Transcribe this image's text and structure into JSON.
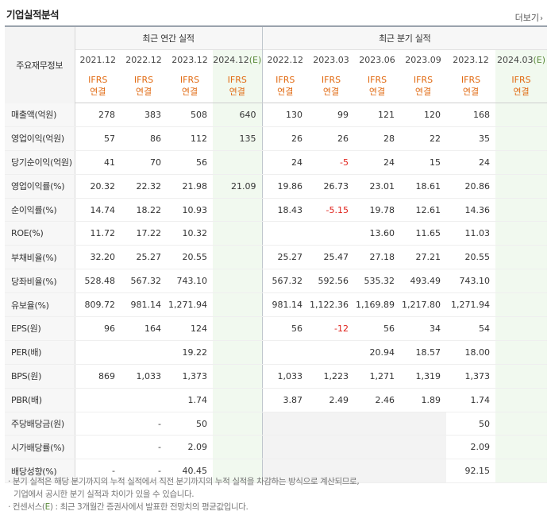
{
  "header": {
    "title": "기업실적분석",
    "more_label": "더보기"
  },
  "table": {
    "row_head_label": "주요재무정보",
    "group_annual": "최근 연간 실적",
    "group_quarter": "최근 분기 실적",
    "periods": [
      "2021.12",
      "2022.12",
      "2023.12",
      "2024.12",
      "2022.12",
      "2023.03",
      "2023.06",
      "2023.09",
      "2023.12",
      "2024.03"
    ],
    "estimate_suffix": "(E)",
    "ifrs_line1": "IFRS",
    "ifrs_line2": "연결",
    "rows": [
      {
        "label": "매출액(억원)",
        "cells": [
          "278",
          "383",
          "508",
          "640",
          "130",
          "99",
          "121",
          "120",
          "168",
          ""
        ]
      },
      {
        "label": "영업이익(억원)",
        "cells": [
          "57",
          "86",
          "112",
          "135",
          "26",
          "26",
          "28",
          "22",
          "35",
          ""
        ]
      },
      {
        "label": "당기순이익(억원)",
        "cells": [
          "41",
          "70",
          "56",
          "",
          "24",
          "-5",
          "24",
          "15",
          "24",
          ""
        ]
      },
      {
        "label": "영업이익률(%)",
        "cells": [
          "20.32",
          "22.32",
          "21.98",
          "21.09",
          "19.86",
          "26.73",
          "23.01",
          "18.61",
          "20.86",
          ""
        ]
      },
      {
        "label": "순이익률(%)",
        "cells": [
          "14.74",
          "18.22",
          "10.93",
          "",
          "18.43",
          "-5.15",
          "19.78",
          "12.61",
          "14.36",
          ""
        ]
      },
      {
        "label": "ROE(%)",
        "cells": [
          "11.72",
          "17.22",
          "10.32",
          "",
          "",
          "",
          "13.60",
          "11.65",
          "11.03",
          ""
        ]
      },
      {
        "label": "부채비율(%)",
        "cells": [
          "32.20",
          "25.27",
          "20.55",
          "",
          "25.27",
          "25.47",
          "27.18",
          "27.21",
          "20.55",
          ""
        ]
      },
      {
        "label": "당좌비율(%)",
        "cells": [
          "528.48",
          "567.32",
          "743.10",
          "",
          "567.32",
          "592.56",
          "535.32",
          "493.49",
          "743.10",
          ""
        ]
      },
      {
        "label": "유보율(%)",
        "cells": [
          "809.72",
          "981.14",
          "1,271.94",
          "",
          "981.14",
          "1,122.36",
          "1,169.89",
          "1,217.80",
          "1,271.94",
          ""
        ]
      },
      {
        "label": "EPS(원)",
        "cells": [
          "96",
          "164",
          "124",
          "",
          "56",
          "-12",
          "56",
          "34",
          "54",
          ""
        ]
      },
      {
        "label": "PER(배)",
        "cells": [
          "",
          "",
          "19.22",
          "",
          "",
          "",
          "20.94",
          "18.57",
          "18.00",
          ""
        ]
      },
      {
        "label": "BPS(원)",
        "cells": [
          "869",
          "1,033",
          "1,373",
          "",
          "1,033",
          "1,223",
          "1,271",
          "1,319",
          "1,373",
          ""
        ]
      },
      {
        "label": "PBR(배)",
        "cells": [
          "",
          "",
          "1.74",
          "",
          "3.87",
          "2.49",
          "2.46",
          "1.89",
          "1.74",
          ""
        ]
      },
      {
        "label": "주당배당금(원)",
        "cells": [
          "",
          "-",
          "50",
          "",
          "",
          "",
          "",
          "",
          "50",
          ""
        ]
      },
      {
        "label": "시가배당률(%)",
        "cells": [
          "",
          "-",
          "2.09",
          "",
          "",
          "",
          "",
          "",
          "2.09",
          ""
        ]
      },
      {
        "label": "배당성향(%)",
        "cells": [
          "-",
          "-",
          "40.45",
          "",
          "",
          "",
          "",
          "",
          "92.15",
          ""
        ]
      }
    ]
  },
  "notes": {
    "line1": "분기 실적은 해당 분기까지의 누적 실적에서 직전 분기까지의 누적 실적을 차감하는 방식으로 계산되므로,",
    "line2": "기업에서 공시한 분기 실적과 차이가 있을 수 있습니다.",
    "line3_prefix": "컨센서스(",
    "line3_e": "E",
    "line3_suffix": ") : 최근 3개월간 증권사에서 발표한 전망치의 평균값입니다."
  },
  "colors": {
    "ifrs": "#e16a12",
    "negative": "#e0221b",
    "estimate_bg": "#f1f9ef",
    "estimate_mark": "#5a8a3a"
  }
}
